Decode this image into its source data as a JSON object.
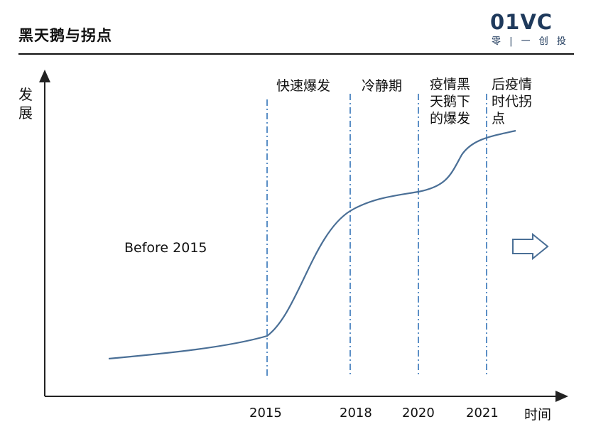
{
  "header": {
    "title": "黑天鹅与拐点",
    "logo_mark": "01VC",
    "logo_sub": "零 | 一 创 投"
  },
  "axes": {
    "y_label": "发展",
    "x_label": "时间",
    "ticks": [
      "2015",
      "2018",
      "2020",
      "2021"
    ]
  },
  "annotations": {
    "before": "Before 2015",
    "phase_1": "快速爆发",
    "phase_2": "冷静期",
    "phase_3_line1": "疫情黑",
    "phase_3_line2": "天鹅下",
    "phase_3_line3": "的爆发",
    "phase_4_line1": "后疫情",
    "phase_4_line2": "时代拐",
    "phase_4_line3": "点"
  },
  "colors": {
    "curve": "#4a6f96",
    "dashed": "#5b8fc6",
    "axis": "#222222",
    "logo": "#1f3a5c"
  }
}
